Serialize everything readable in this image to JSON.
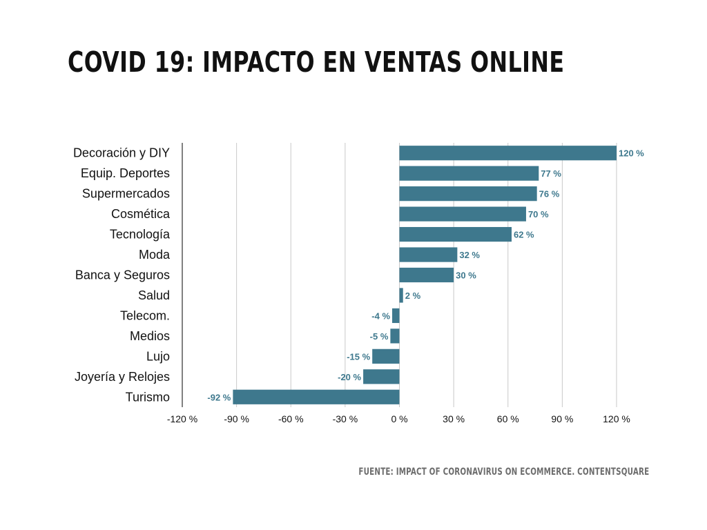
{
  "title": "COVID 19: IMPACTO EN VENTAS ONLINE",
  "source": "FUENTE: IMPACT OF CORONAVIRUS ON ECOMMERCE. CONTENTSQUARE",
  "colors": {
    "bar": "#3e788d",
    "label": "#3e788d",
    "grid": "#c8c8c8",
    "axis": "#000000",
    "text": "#111111"
  },
  "chart_data": {
    "type": "bar",
    "orientation": "horizontal",
    "title": "COVID 19: IMPACTO EN VENTAS ONLINE",
    "categories": [
      "Decoración y DIY",
      "Equip. Deportes",
      "Supermercados",
      "Cosmética",
      "Tecnología",
      "Moda",
      "Banca y Seguros",
      "Salud",
      "Telecom.",
      "Medios",
      "Lujo",
      "Joyería y Relojes",
      "Turismo"
    ],
    "values": [
      120,
      77,
      76,
      70,
      62,
      32,
      30,
      2,
      -4,
      -5,
      -15,
      -20,
      -92
    ],
    "data_labels": [
      "120 %",
      "77 %",
      "76 %",
      "70 %",
      "62 %",
      "32 %",
      "30 %",
      "2 %",
      "-4 %",
      "-5 %",
      "-15 %",
      "-20 %",
      "-92 %"
    ],
    "xlim": [
      -120,
      120
    ],
    "x_ticks": [
      -120,
      -90,
      -60,
      -30,
      0,
      30,
      60,
      90,
      120
    ],
    "x_tick_labels": [
      "-120 %",
      "-90 %",
      "-60 %",
      "-30 %",
      "0 %",
      "30 %",
      "60 %",
      "90 %",
      "120 %"
    ],
    "grid": "vertical",
    "legend": "none"
  }
}
